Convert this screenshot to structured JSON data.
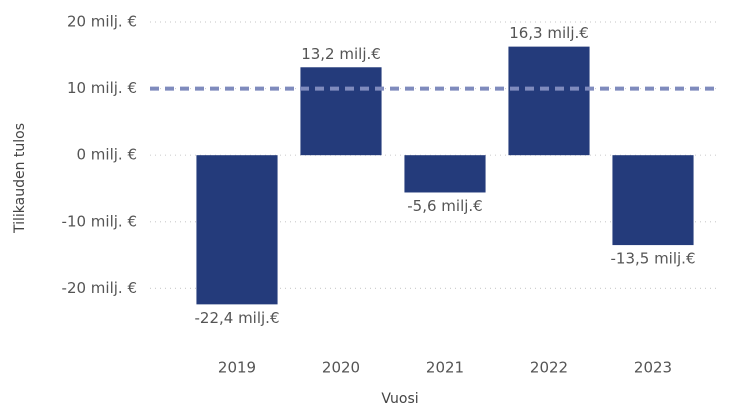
{
  "chart_data": {
    "type": "bar",
    "x_label": "Vuosi",
    "y_label": "Tilikauden tulos",
    "categories": [
      "2019",
      "2020",
      "2021",
      "2022",
      "2023"
    ],
    "values": [
      -22.4,
      13.2,
      -5.6,
      16.3,
      -13.5
    ],
    "value_labels": [
      "-22,4 milj.€",
      "13,2 milj.€",
      "-5,6 milj.€",
      "16,3 milj.€",
      "-13,5 milj.€"
    ],
    "color": "#243b7b",
    "ylim": [
      -27,
      23
    ],
    "yticks": [
      {
        "value": 20,
        "label": "20 milj. €"
      },
      {
        "value": 10,
        "label": "10 milj. €"
      },
      {
        "value": 0,
        "label": "0 milj. €"
      },
      {
        "value": -10,
        "label": "-10 milj. €"
      },
      {
        "value": -20,
        "label": "-20 milj. €"
      }
    ],
    "grid": true,
    "reference_line": {
      "value": 10,
      "color": "#7f8bbd"
    }
  }
}
